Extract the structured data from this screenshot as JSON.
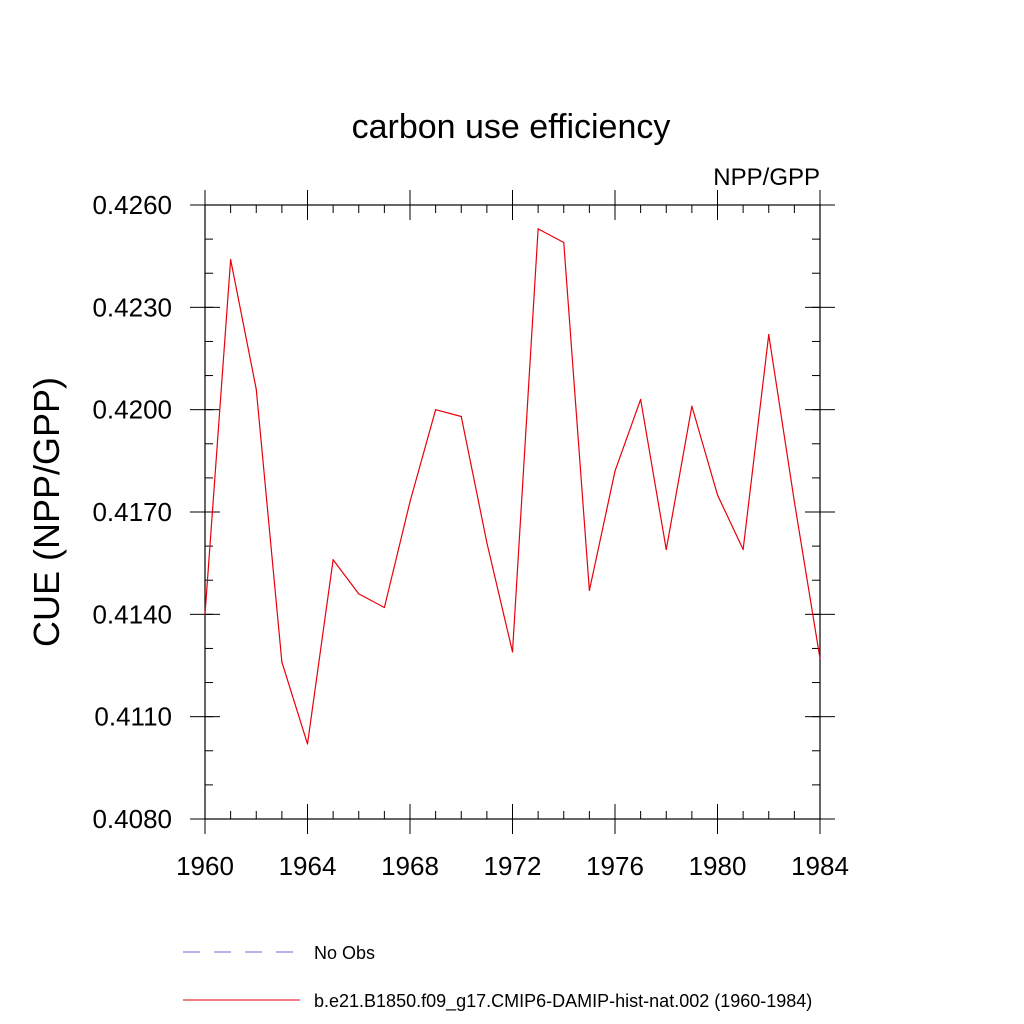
{
  "chart_data": {
    "type": "line",
    "title": "carbon use efficiency",
    "subtitle": "NPP/GPP",
    "xlabel": "",
    "ylabel": "CUE  (NPP/GPP)",
    "xlim": [
      1960,
      1984
    ],
    "ylim": [
      0.408,
      0.426
    ],
    "xticks": [
      "1960",
      "1964",
      "1968",
      "1972",
      "1976",
      "1980",
      "1984"
    ],
    "yticks": [
      "0.4080",
      "0.4110",
      "0.4140",
      "0.4170",
      "0.4200",
      "0.4230",
      "0.4260"
    ],
    "grid": false,
    "legend_position": "bottom",
    "series": [
      {
        "name": "No Obs",
        "color": "#6a6ad8",
        "dash": "dashed",
        "x": [],
        "y": []
      },
      {
        "name": "b.e21.B1850.f09_g17.CMIP6-DAMIP-hist-nat.002 (1960-1984)",
        "color": "#e8000b",
        "dash": "solid",
        "x": [
          1960,
          1961,
          1962,
          1963,
          1964,
          1965,
          1966,
          1967,
          1968,
          1969,
          1970,
          1971,
          1972,
          1973,
          1974,
          1975,
          1976,
          1977,
          1978,
          1979,
          1980,
          1981,
          1982,
          1983,
          1984
        ],
        "y": [
          0.414,
          0.4244,
          0.4206,
          0.4126,
          0.4102,
          0.4156,
          0.4146,
          0.4142,
          0.4173,
          0.42,
          0.4198,
          0.4161,
          0.4129,
          0.4253,
          0.4249,
          0.4147,
          0.4182,
          0.4203,
          0.4159,
          0.4201,
          0.4175,
          0.4159,
          0.4222,
          0.4173,
          0.4127
        ]
      }
    ]
  }
}
